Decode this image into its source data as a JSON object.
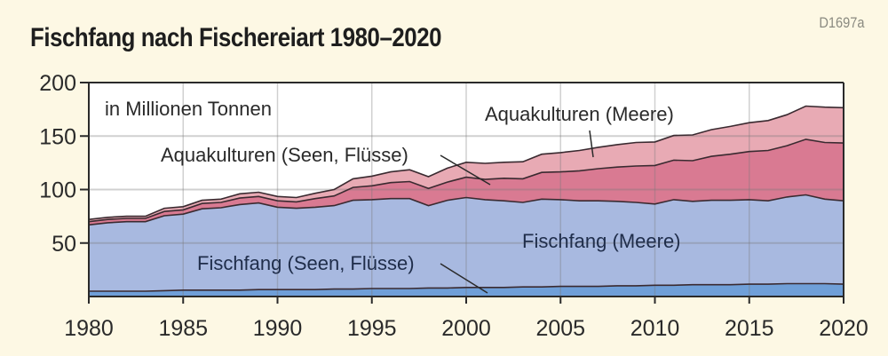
{
  "header": {
    "title": "Fischfang nach Fischereiart 1980–2020",
    "code": "D1697a"
  },
  "colors": {
    "background": "#fdf8e4",
    "plot_bg": "#ffffff",
    "fischfang_seen": "#6f9fd8",
    "fischfang_meere": "#a8b9e0",
    "aquakultur_seen": "#d97a92",
    "aquakultur_meere": "#e8aab4",
    "line": "#3a2a30",
    "grid": "#c8c8c8"
  },
  "chart_data": {
    "type": "area",
    "stacked": true,
    "title": "Fischfang nach Fischereiart 1980–2020",
    "subtitle": "in Millionen Tonnen",
    "xlabel": "",
    "ylabel": "in Millionen Tonnen",
    "xlim": [
      1980,
      2020
    ],
    "ylim": [
      0,
      200
    ],
    "x_ticks": [
      1980,
      1985,
      1990,
      1995,
      2000,
      2005,
      2010,
      2015,
      2020
    ],
    "y_ticks": [
      50,
      100,
      150,
      200
    ],
    "y_tick_labels": [
      "50",
      "100",
      "150",
      "200"
    ],
    "grid": true,
    "x": [
      1980,
      1981,
      1982,
      1983,
      1984,
      1985,
      1986,
      1987,
      1988,
      1989,
      1990,
      1991,
      1992,
      1993,
      1994,
      1995,
      1996,
      1997,
      1998,
      1999,
      2000,
      2001,
      2002,
      2003,
      2004,
      2005,
      2006,
      2007,
      2008,
      2009,
      2010,
      2011,
      2012,
      2013,
      2014,
      2015,
      2016,
      2017,
      2018,
      2019,
      2020
    ],
    "series": [
      {
        "name": "Fischfang (Seen, Flüsse)",
        "values": [
          5,
          5,
          5,
          5,
          5.5,
          6,
          6,
          6,
          6,
          6.5,
          6.5,
          6.5,
          6.5,
          7,
          7,
          7.5,
          7.5,
          7.5,
          8,
          8,
          8.5,
          8.5,
          8.5,
          9,
          9,
          9.5,
          9.5,
          9.5,
          10,
          10,
          10.5,
          10.5,
          11,
          11,
          11,
          11.5,
          11.5,
          12,
          12,
          12,
          11.5
        ]
      },
      {
        "name": "Fischfang (Meere)",
        "values": [
          62,
          64,
          65,
          65,
          70,
          71,
          76,
          77,
          80,
          81,
          77,
          76,
          77,
          78,
          83,
          83,
          84,
          84,
          77,
          82,
          84,
          82,
          81,
          79,
          82,
          81,
          80,
          80,
          79,
          78,
          76,
          80,
          78,
          79,
          79,
          79,
          78,
          81,
          83,
          79,
          78
        ]
      },
      {
        "name": "Aquakulturen (Seen, Flüsse)",
        "values": [
          3,
          3,
          3,
          3,
          4,
          4,
          5,
          5,
          6,
          6,
          6,
          6,
          8,
          9,
          12,
          13,
          15,
          16,
          16,
          17,
          19,
          19,
          21,
          22,
          25,
          26,
          28,
          30,
          32,
          34,
          36,
          37,
          38,
          41,
          43,
          45,
          47,
          48,
          52,
          53,
          54
        ]
      },
      {
        "name": "Aquakulturen (Meere)",
        "values": [
          2,
          2,
          2,
          2,
          3,
          3,
          3,
          3,
          4,
          4,
          4,
          4,
          5,
          6,
          8,
          9,
          10,
          11,
          11,
          13,
          14,
          15,
          15,
          16,
          17,
          18,
          19,
          20,
          21,
          22,
          22,
          23,
          24,
          25,
          26,
          27,
          28,
          29,
          31,
          33,
          33
        ]
      }
    ],
    "annotations": [
      "in Millionen Tonnen",
      "Aquakulturen (Meere)",
      "Aquakulturen (Seen, Flüsse)",
      "Fischfang (Meere)",
      "Fischfang (Seen, Flüsse)"
    ],
    "legend_position": "inline labels"
  },
  "labels": {
    "unit": "in Millionen Tonnen",
    "aqua_meere": "Aquakulturen (Meere)",
    "aqua_seen": "Aquakulturen (Seen, Flüsse)",
    "fisch_meere": "Fischfang (Meere)",
    "fisch_seen": "Fischfang (Seen, Flüsse)"
  }
}
